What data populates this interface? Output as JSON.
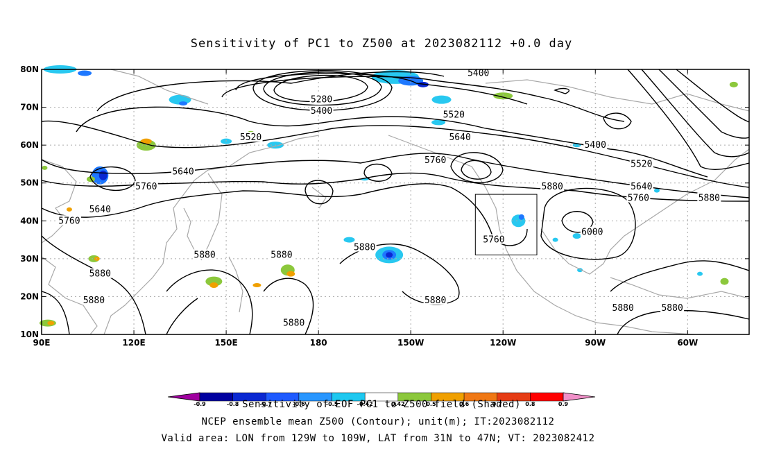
{
  "title": "Sensitivity of PC1 to Z500 at 2023082112 +0.0 day",
  "lat_labels": [
    "80N",
    "70N",
    "60N",
    "50N",
    "40N",
    "30N",
    "20N",
    "10N"
  ],
  "lon_labels": [
    "90E",
    "120E",
    "150E",
    "180",
    "150W",
    "120W",
    "90W",
    "60W"
  ],
  "contour_labels": [
    {
      "text": "5400",
      "lon": -128,
      "lat": 79
    },
    {
      "text": "5280",
      "lon": -179,
      "lat": 72
    },
    {
      "text": "5400",
      "lon": -179,
      "lat": 69
    },
    {
      "text": "5520",
      "lon": -136,
      "lat": 68
    },
    {
      "text": "5520",
      "lon": 158,
      "lat": 62
    },
    {
      "text": "5640",
      "lon": -134,
      "lat": 62
    },
    {
      "text": "5400",
      "lon": -90,
      "lat": 60
    },
    {
      "text": "5760",
      "lon": -142,
      "lat": 56
    },
    {
      "text": "5520",
      "lon": -75,
      "lat": 55
    },
    {
      "text": "5640",
      "lon": 136,
      "lat": 53
    },
    {
      "text": "5760",
      "lon": 124,
      "lat": 49
    },
    {
      "text": "5880",
      "lon": -104,
      "lat": 49
    },
    {
      "text": "5640",
      "lon": -75,
      "lat": 49
    },
    {
      "text": "5760",
      "lon": -76,
      "lat": 46
    },
    {
      "text": "5880",
      "lon": -53,
      "lat": 46
    },
    {
      "text": "5640",
      "lon": 109,
      "lat": 43
    },
    {
      "text": "5760",
      "lon": 99,
      "lat": 40
    },
    {
      "text": "6000",
      "lon": -91,
      "lat": 37
    },
    {
      "text": "5760",
      "lon": -123,
      "lat": 35
    },
    {
      "text": "5880",
      "lon": -165,
      "lat": 33
    },
    {
      "text": "5880",
      "lon": 143,
      "lat": 31
    },
    {
      "text": "5880",
      "lon": 168,
      "lat": 31
    },
    {
      "text": "5880",
      "lon": 109,
      "lat": 26
    },
    {
      "text": "5880",
      "lon": -142,
      "lat": 19
    },
    {
      "text": "5880",
      "lon": 107,
      "lat": 19
    },
    {
      "text": "5880",
      "lon": -81,
      "lat": 17
    },
    {
      "text": "5880",
      "lon": -65,
      "lat": 17
    },
    {
      "text": "5880",
      "lon": 172,
      "lat": 13
    }
  ],
  "valid_box": {
    "lon_min": -129,
    "lon_max": -109,
    "lat_min": 31,
    "lat_max": 47
  },
  "colorbar": {
    "labels": [
      "-0.9",
      "-0.8",
      "-0.7",
      "-0.6",
      "-0.5",
      "-0.42",
      "0.42",
      "0.5",
      "0.6",
      "0.7",
      "0.8",
      "0.9"
    ],
    "colors": [
      "#a0009f",
      "#0000a0",
      "#0a28d2",
      "#1e5aff",
      "#2896ff",
      "#1ec8f0",
      "#ffffff",
      "#8cc83c",
      "#f0a000",
      "#f07814",
      "#e63c14",
      "#ff0000",
      "#f090c8"
    ]
  },
  "footer": {
    "line1": "Sensitivity of EOF PC1 to Z500 field (Shaded)",
    "line2": "NCEP ensemble mean Z500 (Contour); unit(m); IT:2023082112",
    "line3": "Valid area: LON from 129W to 109W, LAT from 31N to 47N; VT: 2023082412"
  },
  "colors": {
    "contour": "#000000",
    "coast": "#a8a8a8",
    "grid": "#aaaaaa",
    "neg_light": "#28c8f0",
    "neg_mid": "#1e78ff",
    "neg_dark": "#0a28d2",
    "pos_green": "#8cc83c",
    "pos_orange": "#f0a000",
    "pos_red": "#e63c14"
  }
}
